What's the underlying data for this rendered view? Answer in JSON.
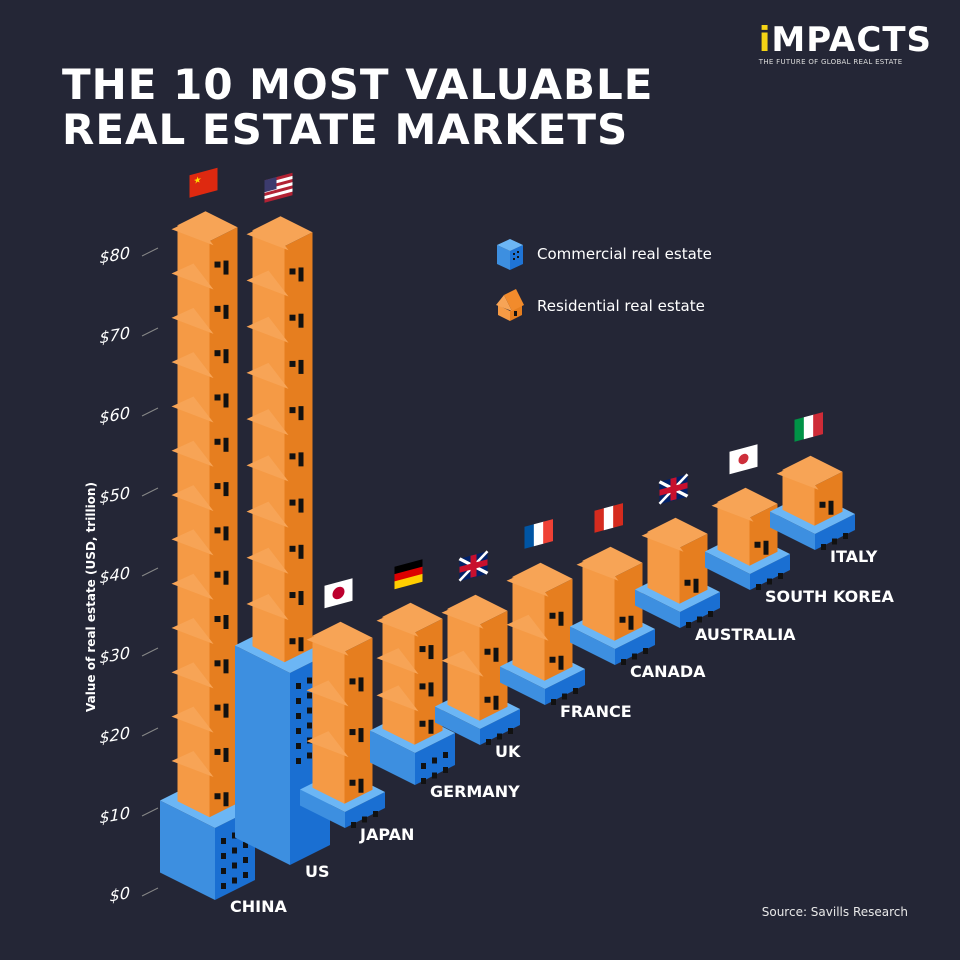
{
  "title_line1": "THE 10 MOST VALUABLE",
  "title_line2": "REAL ESTATE MARKETS",
  "logo": {
    "name_prefix": "i",
    "name": "MPACTS",
    "tagline": "THE FUTURE OF GLOBAL REAL ESTATE"
  },
  "source": "Source: Savills Research",
  "chart_data": {
    "type": "bar",
    "stacked": true,
    "title": "THE 10 MOST VALUABLE REAL ESTATE MARKETS",
    "ylabel": "Value of real estate (USD, trillion)",
    "ylim": [
      0,
      80
    ],
    "yticks": [
      "$0",
      "$10",
      "$20",
      "$30",
      "$40",
      "$50",
      "$60",
      "$70",
      "$80"
    ],
    "categories": [
      "CHINA",
      "US",
      "JAPAN",
      "GERMANY",
      "UK",
      "FRANCE",
      "CANADA",
      "AUSTRALIA",
      "SOUTH KOREA",
      "ITALY"
    ],
    "series": [
      {
        "name": "Commercial real estate",
        "color": "#3d8fe0",
        "values": [
          9,
          24,
          2,
          4,
          2,
          2,
          2,
          2,
          2,
          2
        ]
      },
      {
        "name": "Residential real estate",
        "color": "#f28b2c",
        "values": [
          72,
          52,
          19,
          14,
          12,
          11,
          8,
          7,
          6,
          5
        ]
      }
    ],
    "legend": "top-right"
  }
}
